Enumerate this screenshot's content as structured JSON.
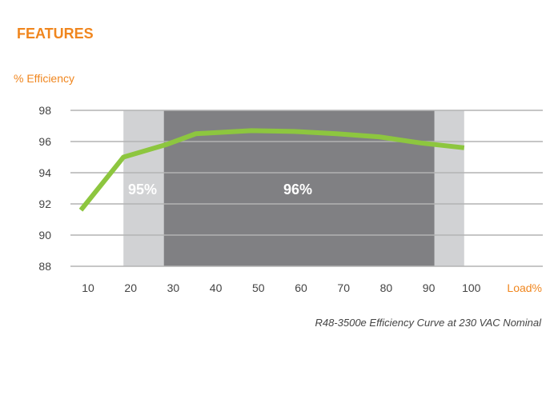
{
  "header": {
    "title": "FEATURES"
  },
  "chart_data": {
    "type": "line",
    "title": "",
    "caption": "R48-3500e Efficiency Curve at 230 VAC Nominal",
    "ylabel": "% Efficiency",
    "xlabel": "Load%",
    "ylim": [
      88,
      98
    ],
    "xlim": [
      10,
      100
    ],
    "yticks": [
      98,
      96,
      94,
      92,
      90,
      88
    ],
    "xticks": [
      10,
      20,
      30,
      40,
      50,
      60,
      70,
      80,
      90,
      100
    ],
    "grid": "horizontal",
    "x": [
      10,
      20,
      30,
      37,
      50,
      60,
      70,
      80,
      90,
      100
    ],
    "series": [
      {
        "values": [
          91.6,
          95.0,
          95.8,
          96.5,
          96.7,
          96.65,
          96.5,
          96.3,
          95.9,
          95.6
        ],
        "color": "#8dc63f"
      }
    ],
    "bands": [
      {
        "label": "95%",
        "from": 20,
        "to": 100,
        "color": "#d1d2d4"
      },
      {
        "label": "96%",
        "from": 29.5,
        "to": 93,
        "color": "#808083"
      }
    ]
  },
  "colors": {
    "accent": "#f0861e",
    "line": "#8dc63f",
    "grid": "#b3b3b3"
  }
}
